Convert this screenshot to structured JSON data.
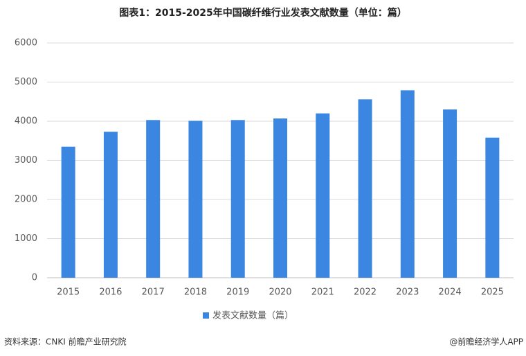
{
  "chart_data": {
    "type": "bar",
    "title": "图表1：2015-2025年中国碳纤维行业发表文献数量（单位：篇）",
    "categories": [
      "2015",
      "2016",
      "2017",
      "2018",
      "2019",
      "2020",
      "2021",
      "2022",
      "2023",
      "2024",
      "2025"
    ],
    "series": [
      {
        "name": "发表文献数量（篇）",
        "color": "#3a86e0",
        "values": [
          3350,
          3730,
          4030,
          4010,
          4030,
          4070,
          4200,
          4560,
          4790,
          4300,
          3580
        ]
      }
    ],
    "ylim": [
      0,
      6000
    ],
    "yticks": [
      0,
      1000,
      2000,
      3000,
      4000,
      5000,
      6000
    ],
    "grid": true,
    "legend": "bottom"
  },
  "footer": {
    "source": "资料来源：CNKI 前瞻产业研究院",
    "credit": "@前瞻经济学人APP"
  }
}
